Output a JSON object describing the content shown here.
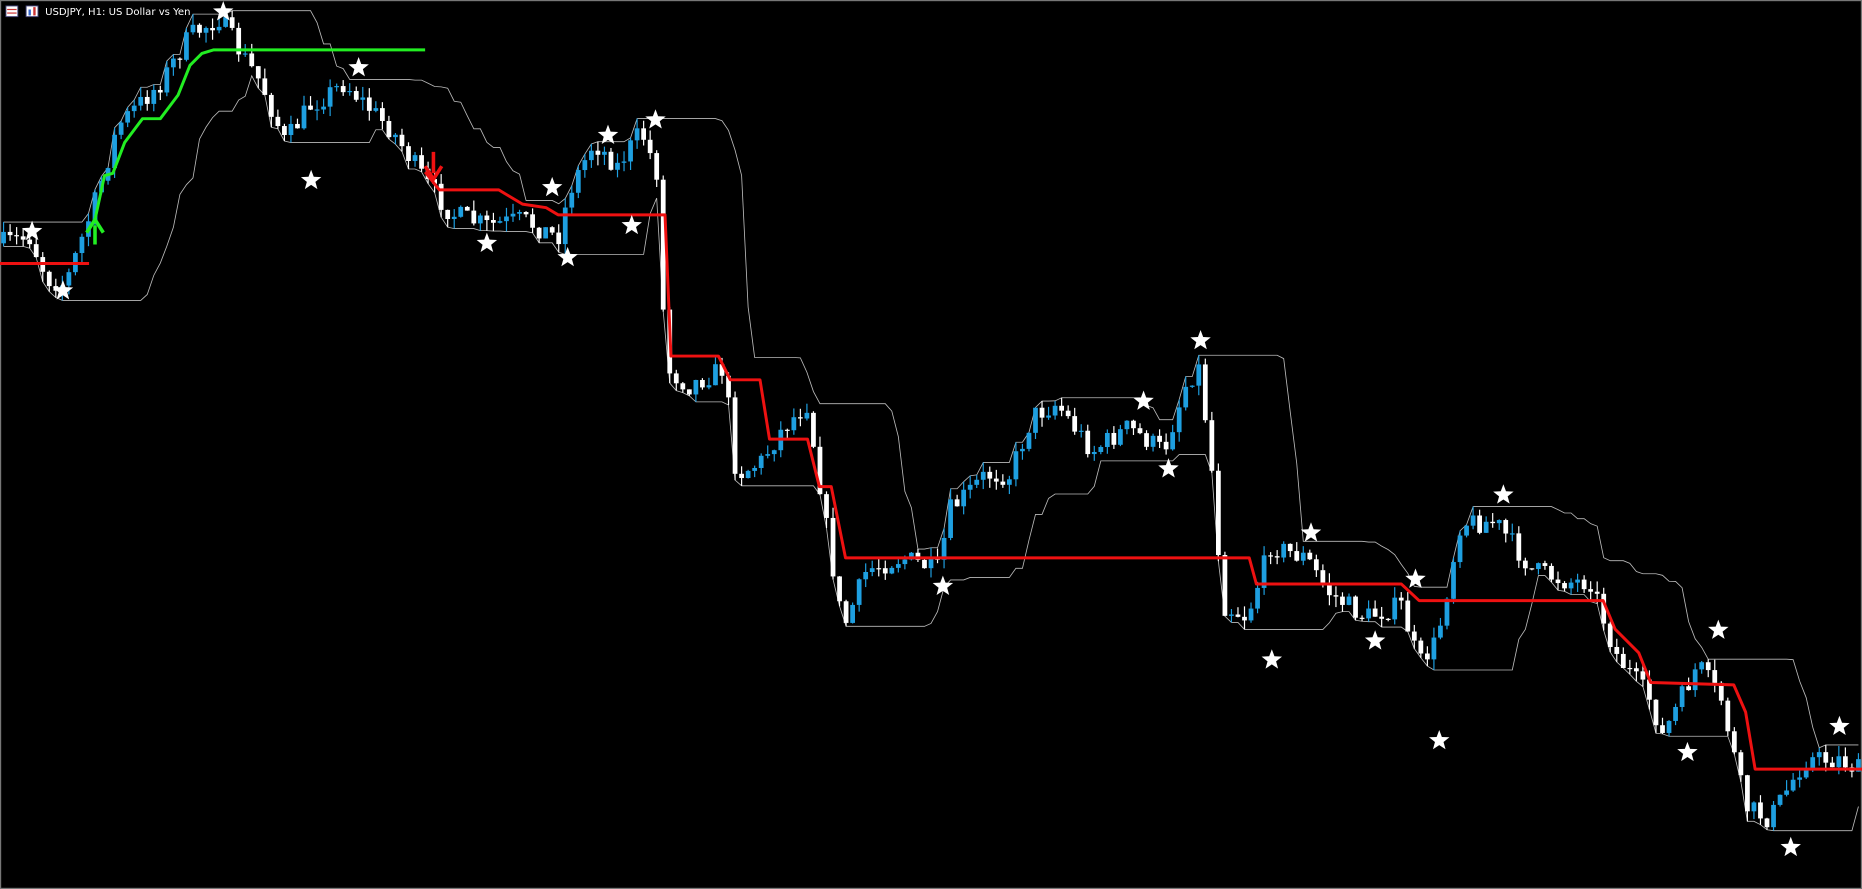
{
  "header": {
    "symbol_title": "USDJPY, H1:  US Dollar vs Yen"
  }
}
